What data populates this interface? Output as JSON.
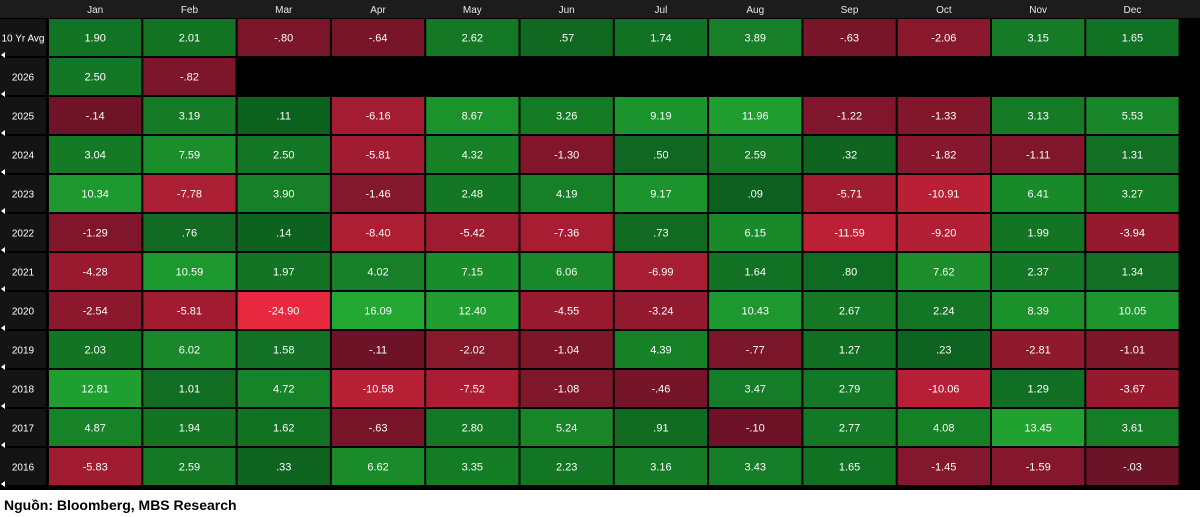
{
  "chart_data": {
    "type": "heatmap",
    "title": "",
    "columns": [
      "Jan",
      "Feb",
      "Mar",
      "Apr",
      "May",
      "Jun",
      "Jul",
      "Aug",
      "Sep",
      "Oct",
      "Nov",
      "Dec"
    ],
    "rows": [
      {
        "label": "10 Yr Avg",
        "values": [
          "1.90",
          "2.01",
          "-.80",
          "-.64",
          "2.62",
          ".57",
          "1.74",
          "3.89",
          "-.63",
          "-2.06",
          "3.15",
          "1.65"
        ]
      },
      {
        "label": "2026",
        "values": [
          "2.50",
          "-.82",
          null,
          null,
          null,
          null,
          null,
          null,
          null,
          null,
          null,
          null
        ]
      },
      {
        "label": "2025",
        "values": [
          "-.14",
          "3.19",
          ".11",
          "-6.16",
          "8.67",
          "3.26",
          "9.19",
          "11.96",
          "-1.22",
          "-1.33",
          "3.13",
          "5.53"
        ]
      },
      {
        "label": "2024",
        "values": [
          "3.04",
          "7.59",
          "2.50",
          "-5.81",
          "4.32",
          "-1.30",
          ".50",
          "2.59",
          ".32",
          "-1.82",
          "-1.11",
          "1.31"
        ]
      },
      {
        "label": "2023",
        "values": [
          "10.34",
          "-7.78",
          "3.90",
          "-1.46",
          "2.48",
          "4.19",
          "9.17",
          ".09",
          "-5.71",
          "-10.91",
          "6.41",
          "3.27"
        ]
      },
      {
        "label": "2022",
        "values": [
          "-1.29",
          ".76",
          ".14",
          "-8.40",
          "-5.42",
          "-7.36",
          ".73",
          "6.15",
          "-11.59",
          "-9.20",
          "1.99",
          "-3.94"
        ]
      },
      {
        "label": "2021",
        "values": [
          "-4.28",
          "10.59",
          "1.97",
          "4.02",
          "7.15",
          "6.06",
          "-6.99",
          "1.64",
          ".80",
          "7.62",
          "2.37",
          "1.34"
        ]
      },
      {
        "label": "2020",
        "values": [
          "-2.54",
          "-5.81",
          "-24.90",
          "16.09",
          "12.40",
          "-4.55",
          "-3.24",
          "10.43",
          "2.67",
          "2.24",
          "8.39",
          "10.05"
        ]
      },
      {
        "label": "2019",
        "values": [
          "2.03",
          "6.02",
          "1.58",
          "-.11",
          "-2.02",
          "-1.04",
          "4.39",
          "-.77",
          "1.27",
          ".23",
          "-2.81",
          "-1.01"
        ]
      },
      {
        "label": "2018",
        "values": [
          "12.81",
          "1.01",
          "4.72",
          "-10.58",
          "-7.52",
          "-1.08",
          "-.46",
          "3.47",
          "2.79",
          "-10.06",
          "1.29",
          "-3.67"
        ]
      },
      {
        "label": "2017",
        "values": [
          "4.87",
          "1.94",
          "1.62",
          "-.63",
          "2.80",
          "5.24",
          ".91",
          "-.10",
          "2.77",
          "4.08",
          "13.45",
          "3.61"
        ]
      },
      {
        "label": "2016",
        "values": [
          "-5.83",
          "2.59",
          ".33",
          "6.62",
          "3.35",
          "2.23",
          "3.16",
          "3.43",
          "1.65",
          "-1.45",
          "-1.59",
          "-.03"
        ]
      }
    ],
    "colors": {
      "background": "#000000",
      "header_bg": "#1c1c1c",
      "header_text": "#e8e8e8",
      "row_label_bg": "#141414",
      "row_label_text": "#ffffff",
      "cell_text": "#ffffff",
      "positive": "#0d6b1f",
      "negative": "#7e1226",
      "accent_orange": "#f2a33a",
      "accent_blue": "#3a7bd5"
    }
  },
  "source_note": "Nguồn: Bloomberg, MBS Research"
}
